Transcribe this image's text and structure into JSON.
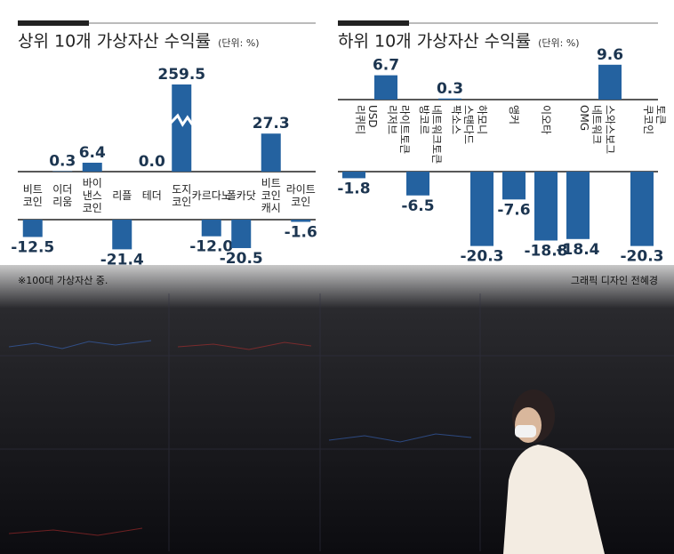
{
  "chart_data": [
    {
      "type": "bar",
      "title": "상위 10개 가상자산 수익률",
      "unit": "(단위: %)",
      "categories": [
        "비트 코인",
        "이더 리움",
        "바이 낸스 코인",
        "리플",
        "테더",
        "도지 코인",
        "카르다노",
        "폴카닷",
        "비트 코인 캐시",
        "라이트 코인"
      ],
      "values": [
        -12.5,
        0.3,
        6.4,
        -21.4,
        0.0,
        259.5,
        -12.0,
        -20.5,
        27.3,
        -1.6
      ],
      "value_labels": [
        "-12.5",
        "0.3",
        "6.4",
        "-21.4",
        "0.0",
        "259.5",
        "-12.0",
        "-20.5",
        "27.3",
        "-1.6"
      ],
      "color": "#2462a0",
      "ylim": [
        -25,
        30
      ]
    },
    {
      "type": "bar",
      "title": "하위 10개 가상자산 수익률",
      "unit": "(단위: %)",
      "categories": [
        "리퀴티 USD",
        "리저브 라이트토큰",
        "방코르 네트워크토큰",
        "팍소스 스탠다드",
        "하모니",
        "앵커",
        "이오타",
        "OMG 네트워크",
        "스와스보그",
        "쿠코인 토큰"
      ],
      "values": [
        -1.8,
        6.7,
        -6.5,
        0.3,
        -20.3,
        -7.6,
        -18.8,
        -18.4,
        9.6,
        -20.3
      ],
      "value_labels": [
        "-1.8",
        "6.7",
        "-6.5",
        "0.3",
        "-20.3",
        "-7.6",
        "-18.8",
        "-18.4",
        "9.6",
        "-20.3"
      ],
      "color": "#2462a0",
      "ylim": [
        -25,
        12
      ]
    }
  ],
  "footnote": "※100대 가상자산 중.",
  "credit": "그래픽 디자인 전혜경"
}
